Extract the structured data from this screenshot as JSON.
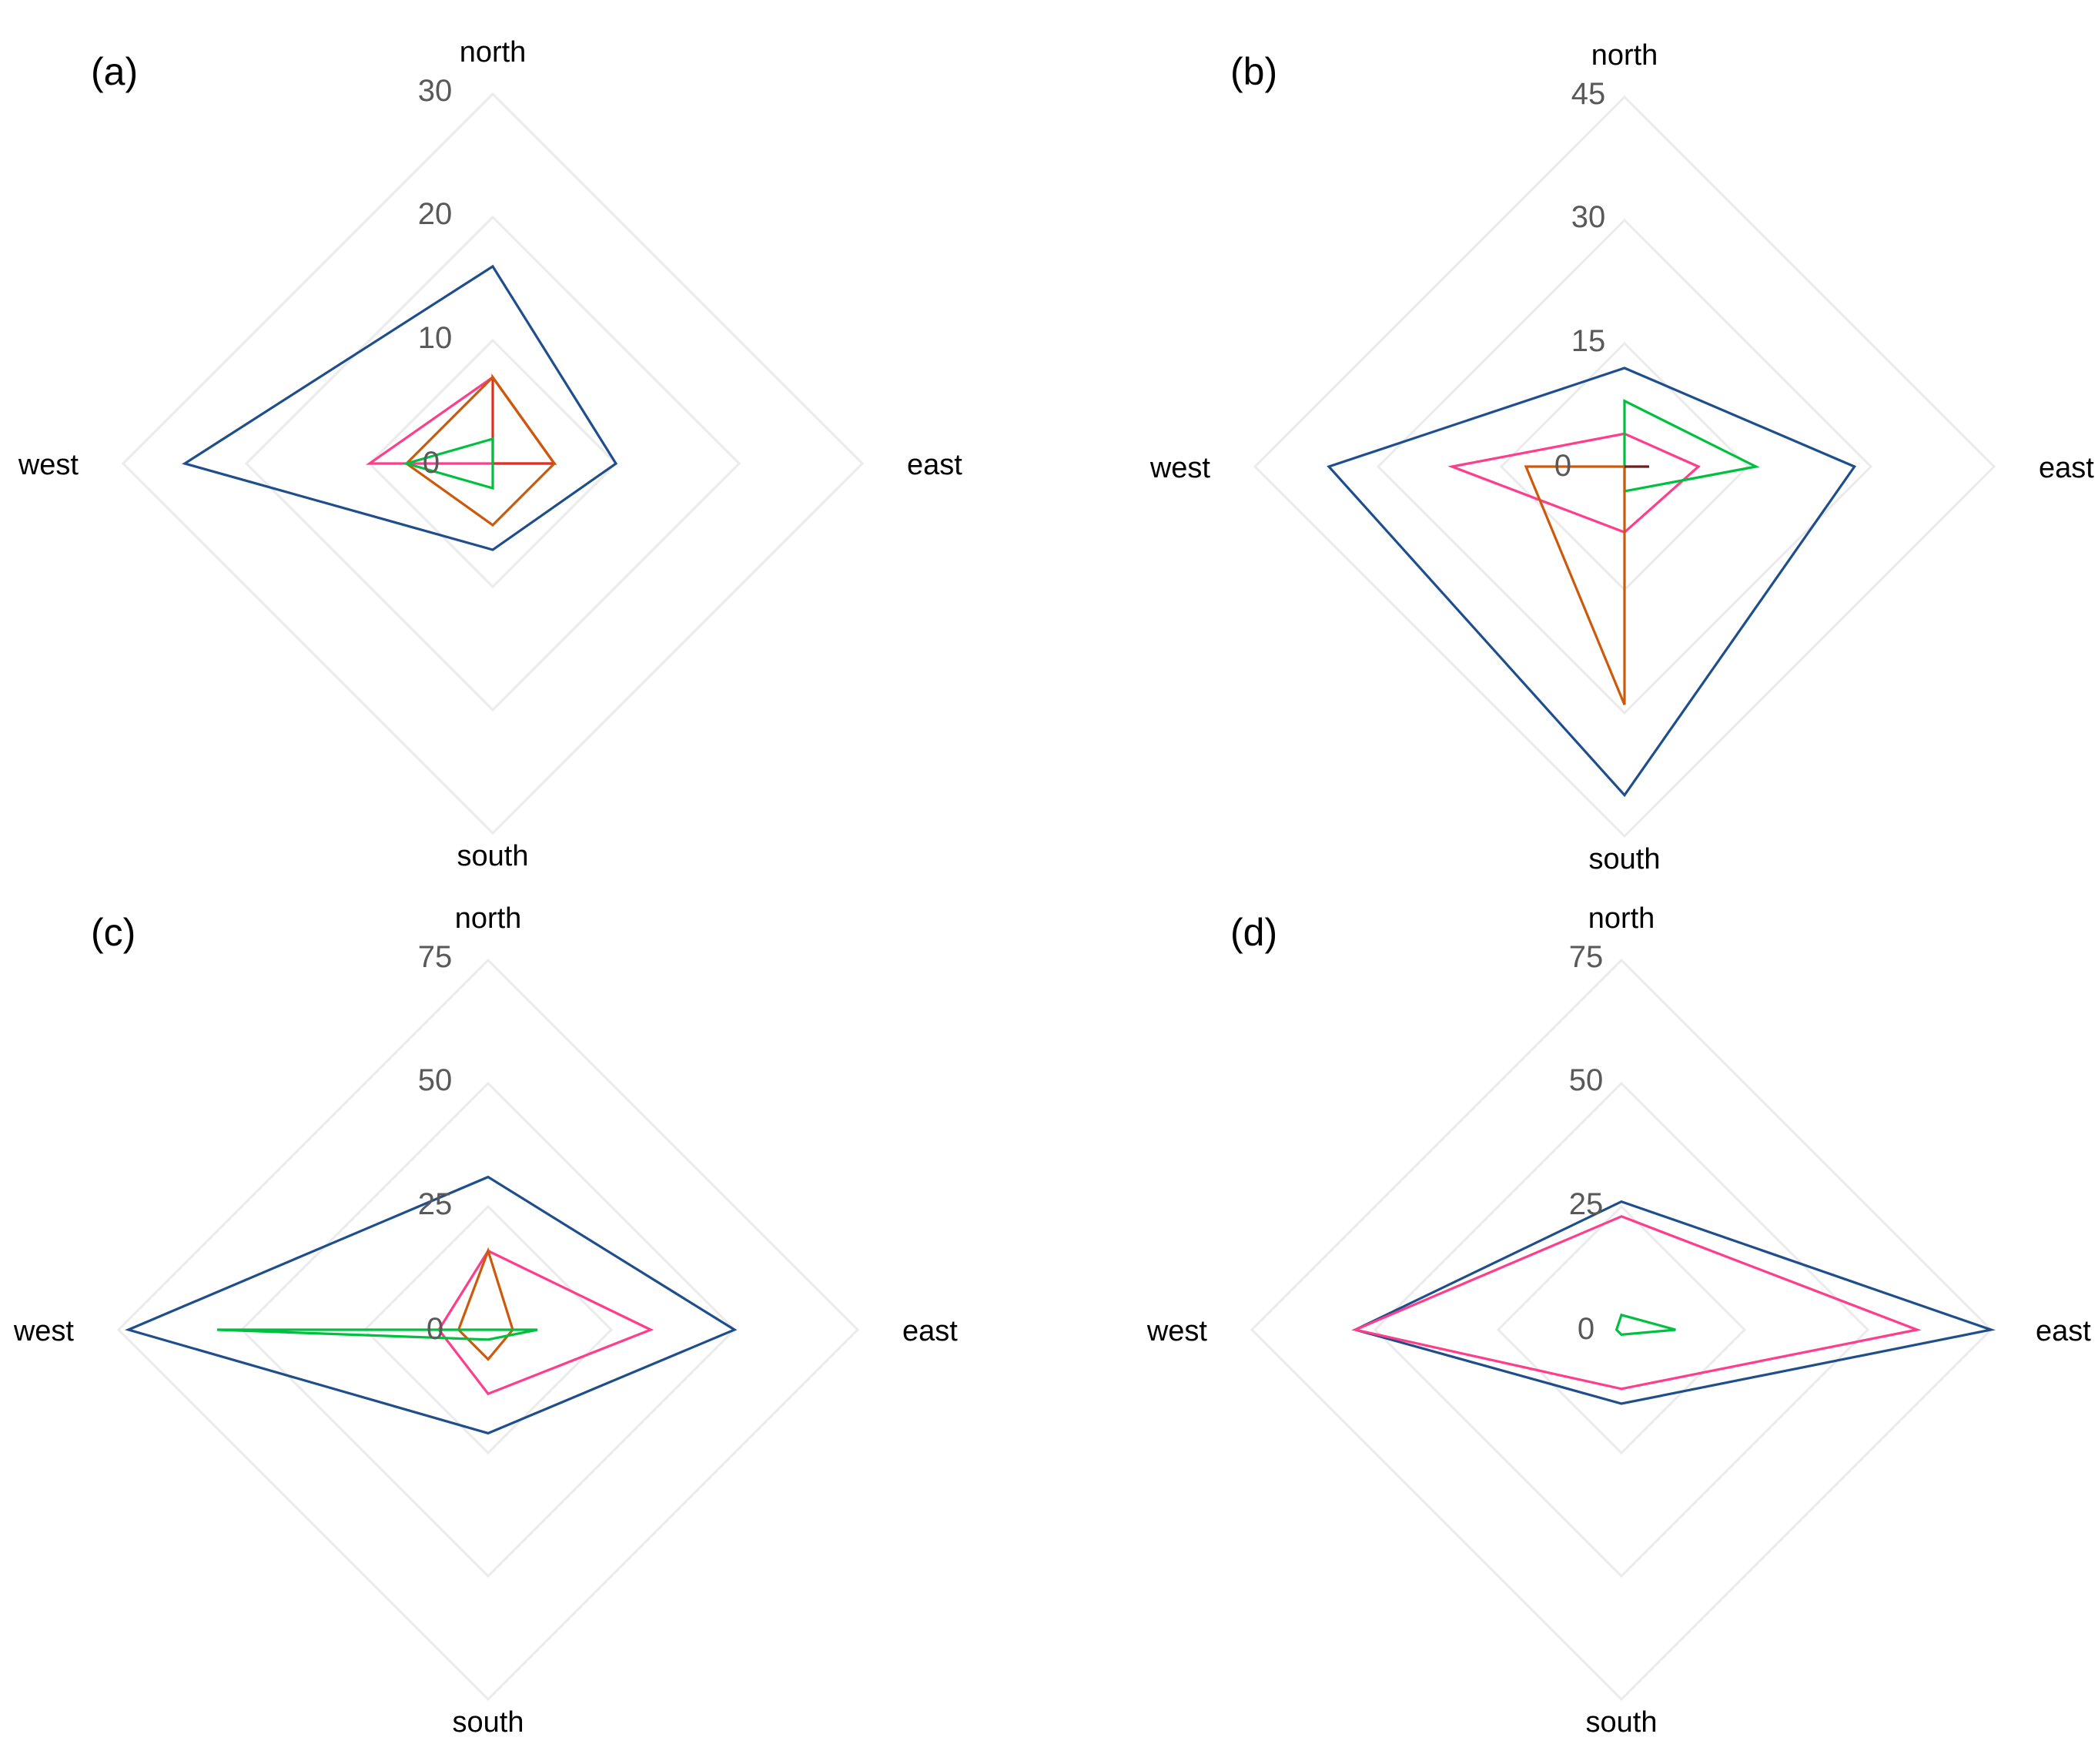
{
  "chart_data": [
    {
      "type": "radar",
      "panel_label": "(a)",
      "axes": [
        "north",
        "east",
        "south",
        "west"
      ],
      "ticks": [
        "0",
        "10",
        "20",
        "30"
      ],
      "rmax": 30,
      "grid": true,
      "series": [
        {
          "color": "#1f4e8c",
          "values": [
            16,
            10,
            7,
            25
          ]
        },
        {
          "color": "#ff3d8a",
          "values": [
            7,
            5,
            0,
            10
          ]
        },
        {
          "color": "#e0301e",
          "values": [
            7,
            5,
            0,
            0
          ]
        },
        {
          "color": "#cc5a0a",
          "values": [
            7,
            5,
            5,
            7
          ]
        },
        {
          "color": "#00c040",
          "values": [
            2,
            0,
            2,
            7
          ]
        }
      ]
    },
    {
      "type": "radar",
      "panel_label": "(b)",
      "axes": [
        "north",
        "east",
        "south",
        "west"
      ],
      "ticks": [
        "0",
        "15",
        "30",
        "45"
      ],
      "rmax": 45,
      "grid": true,
      "series": [
        {
          "color": "#1f4e8c",
          "values": [
            12,
            28,
            40,
            36
          ]
        },
        {
          "color": "#ff3d8a",
          "values": [
            4,
            9,
            8,
            21
          ]
        },
        {
          "color": "#00c040",
          "values": [
            8,
            16,
            3,
            0
          ]
        },
        {
          "color": "#cc5a0a",
          "values": [
            0,
            0,
            29,
            12
          ]
        },
        {
          "color": "#6b1f1f",
          "values": [
            0,
            3,
            0,
            0
          ]
        }
      ]
    },
    {
      "type": "radar",
      "panel_label": "(c)",
      "axes": [
        "north",
        "east",
        "south",
        "west"
      ],
      "ticks": [
        "0",
        "25",
        "50",
        "75"
      ],
      "rmax": 75,
      "grid": true,
      "series": [
        {
          "color": "#1f4e8c",
          "values": [
            31,
            50,
            21,
            73
          ]
        },
        {
          "color": "#ff3d8a",
          "values": [
            16,
            33,
            13,
            10
          ]
        },
        {
          "color": "#cc5a0a",
          "values": [
            16,
            5,
            6,
            6
          ]
        },
        {
          "color": "#00c040",
          "values": [
            0,
            10,
            2,
            55
          ]
        }
      ]
    },
    {
      "type": "radar",
      "panel_label": "(d)",
      "axes": [
        "north",
        "east",
        "south",
        "west"
      ],
      "ticks": [
        "0",
        "25",
        "50",
        "75"
      ],
      "rmax": 75,
      "grid": true,
      "series": [
        {
          "color": "#1f4e8c",
          "values": [
            26,
            75,
            15,
            54
          ]
        },
        {
          "color": "#ff3d8a",
          "values": [
            23,
            60,
            12,
            54
          ]
        },
        {
          "color": "#00c040",
          "values": [
            3,
            11,
            1,
            1
          ]
        }
      ]
    }
  ]
}
